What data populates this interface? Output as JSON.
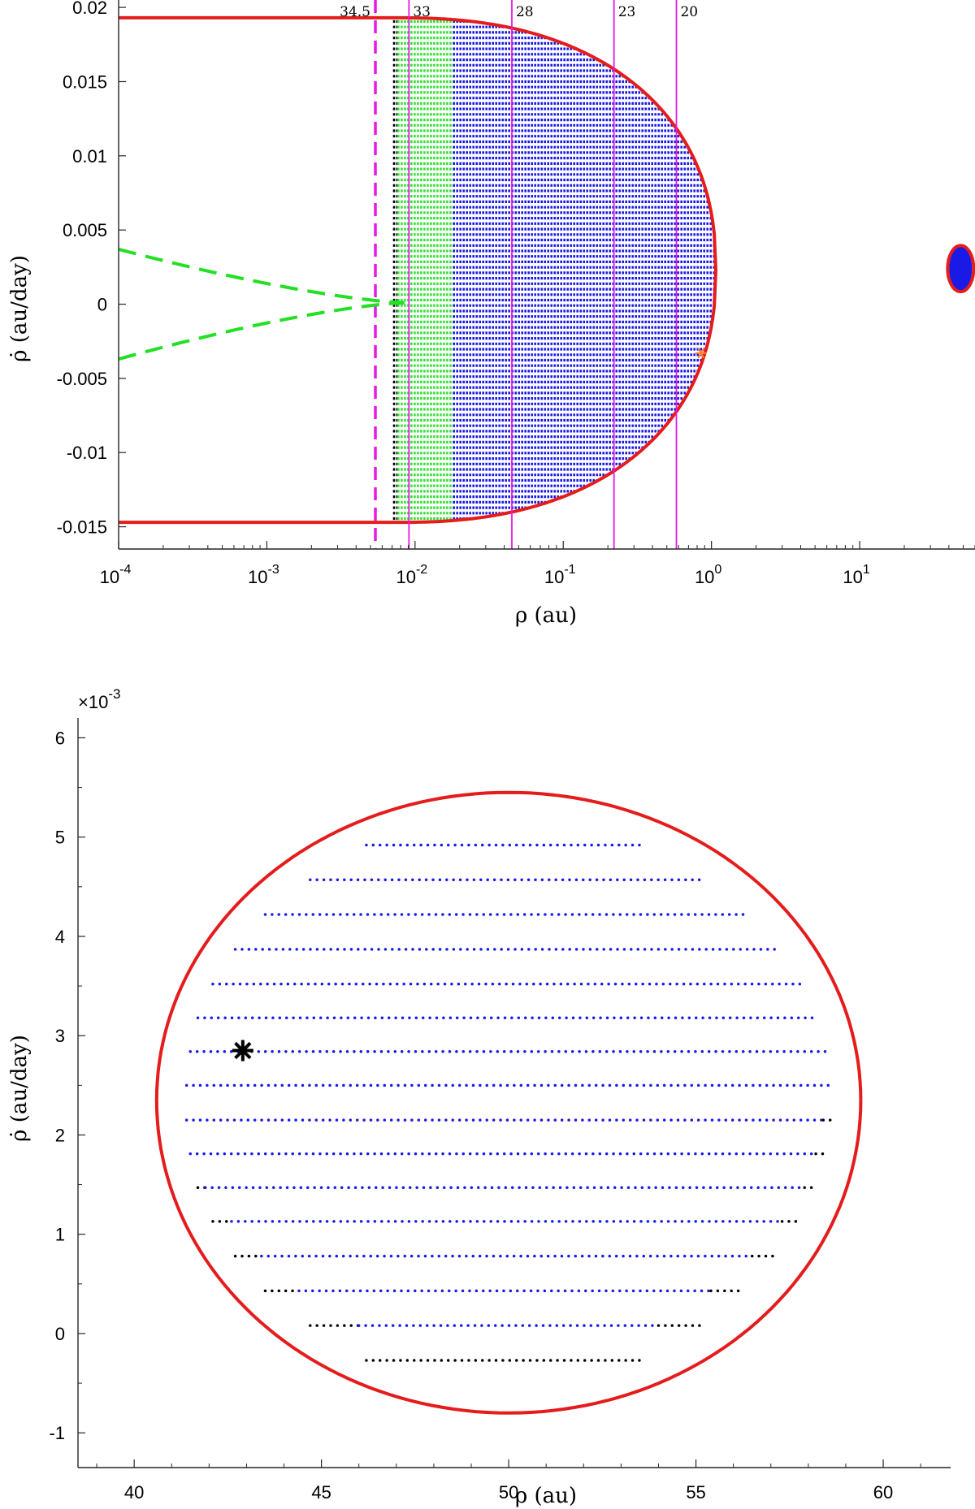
{
  "chart_data": [
    {
      "type": "scatter",
      "title": "",
      "xlabel": "ρ (au)",
      "ylabel": "ρ̇ (au/day)",
      "xscale": "log",
      "xlim": [
        0.0001,
        60
      ],
      "ylim": [
        -0.0165,
        0.0205
      ],
      "xticks": [
        {
          "value": 0.0001,
          "base": "10",
          "exp": "-4"
        },
        {
          "value": 0.001,
          "base": "10",
          "exp": "-3"
        },
        {
          "value": 0.01,
          "base": "10",
          "exp": "-2"
        },
        {
          "value": 0.1,
          "base": "10",
          "exp": "-1"
        },
        {
          "value": 1,
          "base": "10",
          "exp": "0"
        },
        {
          "value": 10,
          "base": "10",
          "exp": "1"
        }
      ],
      "yticks": [
        {
          "value": 0.02,
          "label": "0.02"
        },
        {
          "value": 0.015,
          "label": "0.015"
        },
        {
          "value": 0.01,
          "label": "0.01"
        },
        {
          "value": 0.005,
          "label": "0.005"
        },
        {
          "value": 0,
          "label": "0"
        },
        {
          "value": -0.005,
          "label": "-0.005"
        },
        {
          "value": -0.01,
          "label": "-0.01"
        },
        {
          "value": -0.015,
          "label": "-0.015"
        }
      ],
      "resonance_lines": [
        {
          "label": "34.5",
          "rho": 0.0054,
          "style": "dashed"
        },
        {
          "label": "33",
          "rho": 0.0091,
          "style": "solid"
        },
        {
          "label": "28",
          "rho": 0.045,
          "style": "solid"
        },
        {
          "label": "23",
          "rho": 0.22,
          "style": "solid"
        },
        {
          "label": "20",
          "rho": 0.58,
          "style": "solid"
        }
      ],
      "boundary": {
        "upper_value": 0.0193,
        "lower_value": -0.0147,
        "cap_rho": 1.07,
        "color": "#e51c1c"
      },
      "regions": [
        {
          "name": "black",
          "rho_min": 0.0071,
          "rho_max": 0.0076,
          "color": "#000000"
        },
        {
          "name": "green",
          "rho_min": 0.0076,
          "rho_max": 0.018,
          "color": "#33e033"
        },
        {
          "name": "blue",
          "rho_min": 0.018,
          "rho_max": 1.07,
          "color": "#1a1ae6"
        }
      ],
      "dashed_curves": {
        "color": "#22e022",
        "start_values": [
          0.0037,
          -0.0037
        ],
        "end_rho": 0.0085,
        "end_value": 0.0001
      },
      "small_island": {
        "rho": 48,
        "value": 0.0024,
        "dy": 0.0031,
        "color": "#e51c1c"
      },
      "marker_star": {
        "rho": 0.85,
        "value": -0.0033,
        "color": "#ff7f27"
      },
      "colors": {
        "boundary": "#e51c1c",
        "resonance": "#e619e6",
        "blue": "#1a1ae6",
        "green": "#33e033",
        "black": "#000000"
      }
    },
    {
      "type": "scatter",
      "title": "",
      "xlabel": "ρ (au)",
      "ylabel": "ρ̇ (au/day)",
      "y_multiplier": "×10-3",
      "xlim": [
        38.5,
        61.8
      ],
      "ylim": [
        -1.35,
        6.2
      ],
      "xticks": [
        40,
        45,
        50,
        55,
        60
      ],
      "yticks": [
        -1,
        0,
        1,
        2,
        3,
        4,
        5,
        6
      ],
      "ellipse": {
        "center_x": 50,
        "center_y": 2.35,
        "x_left": 40.6,
        "x_right": 59.4,
        "y_top": 5.45,
        "y_bottom": -0.8,
        "color": "#e51c1c"
      },
      "rows": [
        {
          "y": 4.92,
          "x_start": 46.2,
          "x_end": 53.6,
          "black_left_end": null,
          "black_right_start": null
        },
        {
          "y": 4.57,
          "x_start": 44.7,
          "x_end": 55.2,
          "black_left_end": null,
          "black_right_start": null
        },
        {
          "y": 4.22,
          "x_start": 43.5,
          "x_end": 56.3,
          "black_left_end": null,
          "black_right_start": null
        },
        {
          "y": 3.87,
          "x_start": 42.7,
          "x_end": 57.2,
          "black_left_end": null,
          "black_right_start": null
        },
        {
          "y": 3.52,
          "x_start": 42.1,
          "x_end": 57.8,
          "black_left_end": null,
          "black_right_start": null
        },
        {
          "y": 3.18,
          "x_start": 41.7,
          "x_end": 58.2,
          "black_left_end": null,
          "black_right_start": null
        },
        {
          "y": 2.84,
          "x_start": 41.5,
          "x_end": 58.5,
          "black_left_end": null,
          "black_right_start": null
        },
        {
          "y": 2.5,
          "x_start": 41.4,
          "x_end": 58.7,
          "black_left_end": null,
          "black_right_start": null
        },
        {
          "y": 2.15,
          "x_start": 41.4,
          "x_end": 58.7,
          "black_left_end": null,
          "black_right_start": 58.4
        },
        {
          "y": 1.81,
          "x_start": 41.5,
          "x_end": 58.5,
          "black_left_end": null,
          "black_right_start": 58.2
        },
        {
          "y": 1.47,
          "x_start": 41.7,
          "x_end": 58.2,
          "black_left_end": 41.9,
          "black_right_start": 57.9
        },
        {
          "y": 1.13,
          "x_start": 42.1,
          "x_end": 57.8,
          "black_left_end": 42.6,
          "black_right_start": 57.3
        },
        {
          "y": 0.78,
          "x_start": 42.7,
          "x_end": 57.2,
          "black_left_end": 43.4,
          "black_right_start": 56.5
        },
        {
          "y": 0.43,
          "x_start": 43.5,
          "x_end": 56.3,
          "black_left_end": 44.4,
          "black_right_start": 55.4
        },
        {
          "y": 0.08,
          "x_start": 44.7,
          "x_end": 55.2,
          "black_left_end": 46.0,
          "black_right_start": 54.0
        },
        {
          "y": -0.27,
          "x_start": 46.2,
          "x_end": 53.6,
          "black_left_end": 53.6,
          "black_right_start": null
        }
      ],
      "dot_spacing": 0.2,
      "marker_star": {
        "x": 42.9,
        "y": 2.85,
        "color": "#000000"
      },
      "colors": {
        "blue": "#1a1ae6",
        "black": "#000000",
        "ellipse": "#e51c1c"
      }
    }
  ]
}
